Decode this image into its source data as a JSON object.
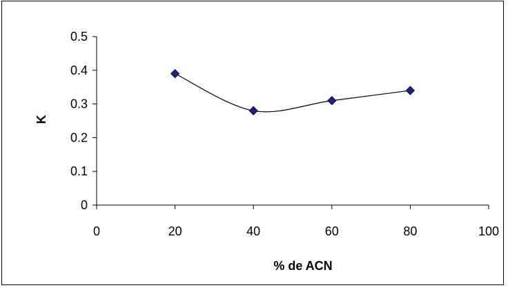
{
  "chart_data": {
    "type": "scatter",
    "title": "",
    "xlabel": "% de ACN",
    "ylabel": "K",
    "xlim": [
      0,
      100
    ],
    "ylim": [
      0,
      0.5
    ],
    "x_ticks": [
      0,
      20,
      40,
      60,
      80,
      100
    ],
    "y_ticks": [
      0,
      0.1,
      0.2,
      0.3,
      0.4,
      0.5
    ],
    "x_tick_labels": [
      "0",
      "20",
      "40",
      "60",
      "80",
      "100"
    ],
    "y_tick_labels": [
      "0",
      "0.1",
      "0.2",
      "0.3",
      "0.4",
      "0.5"
    ],
    "grid": false,
    "legend": "none",
    "marker": "diamond",
    "marker_color": "#1a237e",
    "trendline": "smooth curve",
    "line_color": "#000000",
    "series": [
      {
        "x": [
          20,
          40,
          60,
          80
        ],
        "y": [
          0.39,
          0.28,
          0.31,
          0.34
        ]
      }
    ]
  }
}
